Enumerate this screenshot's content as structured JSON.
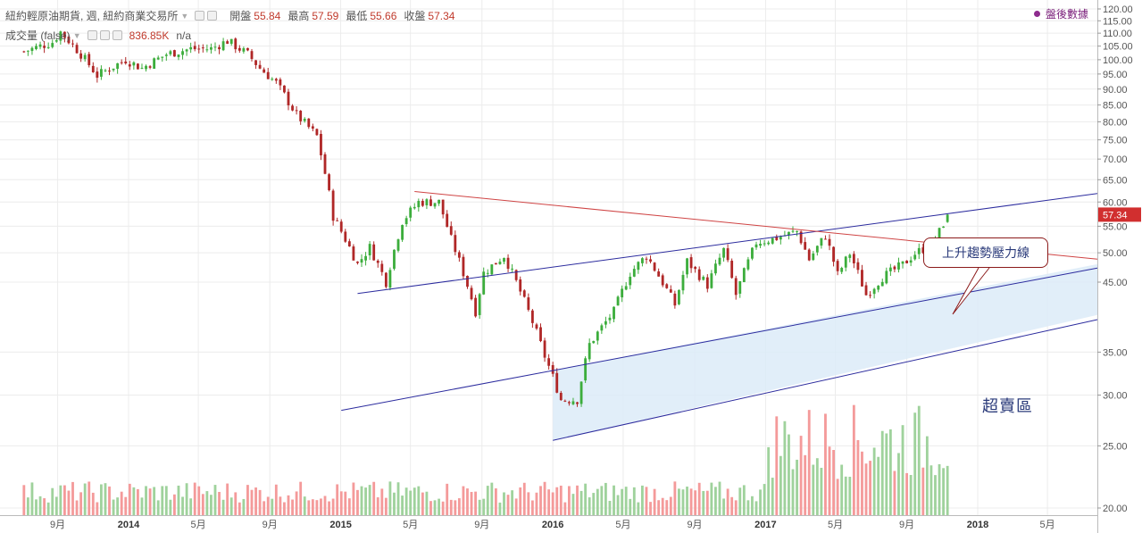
{
  "legend": {
    "title": "紐約輕原油期貨, 週, 紐約商業交易所",
    "open_label": "開盤",
    "open": "55.84",
    "high_label": "最高",
    "high": "57.59",
    "low_label": "最低",
    "low": "55.66",
    "close_label": "收盤",
    "close": "57.34",
    "volume_label": "成交量 (false)",
    "volume_value": "836.85K",
    "volume_na": "n/a"
  },
  "settlement_button": "盤後數據",
  "annotations": {
    "resistance": "上升趨勢壓力線",
    "oversold": "超賣區"
  },
  "colors": {
    "up": "#3cad3c",
    "down": "#b02727",
    "vol_up": "#9fd29c",
    "vol_down": "#f49a9a",
    "trend_blue": "#2c2c9e",
    "trend_red": "#cf4444",
    "zone_fill": "#dcebf8",
    "price_tag": "#d12f2f"
  },
  "chart_data": {
    "type": "candlestick",
    "interval": "weekly",
    "instrument": "紐約輕原油期貨",
    "exchange": "紐約商業交易所",
    "ylim": [
      19,
      121
    ],
    "y_scale": "log",
    "y_ticks": [
      "120.00",
      "115.00",
      "110.00",
      "105.00",
      "100.00",
      "95.00",
      "90.00",
      "85.00",
      "80.00",
      "75.00",
      "70.00",
      "65.00",
      "60.00",
      "55.00",
      "50.00",
      "45.00",
      "35.00",
      "30.00",
      "25.00",
      "20.00"
    ],
    "x_ticks": [
      "9月",
      "2014",
      "5月",
      "9月",
      "2015",
      "5月",
      "9月",
      "2016",
      "5月",
      "9月",
      "2017",
      "5月",
      "9月",
      "2018",
      "5月"
    ],
    "last_price": "57.34",
    "weekly_close_path": [
      [
        "2013-07-05",
        103.0
      ],
      [
        "2013-08-23",
        106.5
      ],
      [
        "2013-09-06",
        110.5
      ],
      [
        "2013-10-11",
        102.0
      ],
      [
        "2013-11-08",
        94.5
      ],
      [
        "2013-12-27",
        100.0
      ],
      [
        "2014-01-24",
        97.0
      ],
      [
        "2014-03-07",
        102.0
      ],
      [
        "2014-04-18",
        104.0
      ],
      [
        "2014-05-23",
        104.0
      ],
      [
        "2014-06-20",
        107.0
      ],
      [
        "2014-07-25",
        102.0
      ],
      [
        "2014-08-15",
        97.0
      ],
      [
        "2014-09-12",
        92.0
      ],
      [
        "2014-10-17",
        82.0
      ],
      [
        "2014-11-21",
        76.0
      ],
      [
        "2014-12-19",
        57.0
      ],
      [
        "2015-01-30",
        48.0
      ],
      [
        "2015-02-20",
        51.0
      ],
      [
        "2015-03-20",
        45.0
      ],
      [
        "2015-04-17",
        56.0
      ],
      [
        "2015-05-15",
        60.0
      ],
      [
        "2015-06-19",
        60.0
      ],
      [
        "2015-07-10",
        52.5
      ],
      [
        "2015-08-21",
        40.5
      ],
      [
        "2015-09-04",
        46.5
      ],
      [
        "2015-10-09",
        49.5
      ],
      [
        "2015-11-20",
        40.5
      ],
      [
        "2015-12-18",
        34.5
      ],
      [
        "2016-01-15",
        29.5
      ],
      [
        "2016-02-12",
        29.5
      ],
      [
        "2016-03-04",
        36.0
      ],
      [
        "2016-04-15",
        40.5
      ],
      [
        "2016-05-13",
        46.5
      ],
      [
        "2016-06-10",
        49.5
      ],
      [
        "2016-07-29",
        41.5
      ],
      [
        "2016-08-19",
        48.5
      ],
      [
        "2016-09-23",
        44.5
      ],
      [
        "2016-10-21",
        50.5
      ],
      [
        "2016-11-11",
        43.0
      ],
      [
        "2016-12-16",
        51.9
      ],
      [
        "2017-01-13",
        52.5
      ],
      [
        "2017-02-24",
        54.0
      ],
      [
        "2017-03-17",
        48.8
      ],
      [
        "2017-04-14",
        53.2
      ],
      [
        "2017-05-05",
        46.2
      ],
      [
        "2017-05-26",
        49.9
      ],
      [
        "2017-06-23",
        43.0
      ],
      [
        "2017-07-21",
        45.8
      ],
      [
        "2017-08-25",
        47.9
      ],
      [
        "2017-09-15",
        49.9
      ],
      [
        "2017-10-13",
        51.5
      ],
      [
        "2017-10-27",
        53.9
      ],
      [
        "2017-11-03",
        55.6
      ],
      [
        "2017-11-10",
        57.34
      ]
    ],
    "trendlines": [
      {
        "name": "上升趨勢壓力線",
        "color": "blue",
        "from": [
          "2015-01-30",
          43.2
        ],
        "to": [
          "2018-08-31",
          62.5
        ]
      },
      {
        "name": "red-downtrend",
        "color": "red",
        "from": [
          "2015-05-08",
          62.3
        ],
        "to": [
          "2018-08-31",
          48.5
        ]
      },
      {
        "name": "lower-channel-top",
        "color": "blue",
        "from": [
          "2015-01-02",
          28.4
        ],
        "to": [
          "2018-08-31",
          48.0
        ]
      },
      {
        "name": "lower-channel-bottom",
        "color": "blue",
        "from": [
          "2016-01-01",
          25.5
        ],
        "to": [
          "2018-08-31",
          40.0
        ]
      }
    ]
  }
}
